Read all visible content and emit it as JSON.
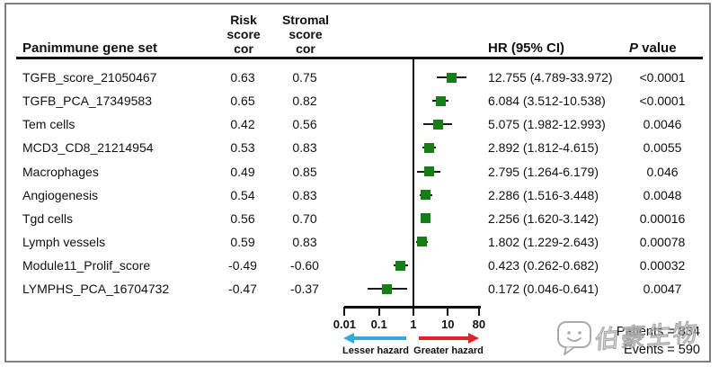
{
  "figure": {
    "header": {
      "gene_set_col": "Panimmune gene set",
      "risk_col_lines": [
        "Risk",
        "score",
        "cor"
      ],
      "stromal_col_lines": [
        "Stromal",
        "score",
        "cor"
      ],
      "hr_col": "HR (95% CI)",
      "p_col_italic": "P",
      "p_col_rest": " value"
    },
    "footer": {
      "patients": "Patients = 834",
      "events": "Events = 590"
    },
    "hazard_labels": {
      "lesser": "Lesser hazard",
      "greater": "Greater hazard"
    },
    "watermark": {
      "text": "伯豪生物",
      "icon": "chat-bubble-smiley-logo"
    }
  },
  "table": {
    "rows": [
      {
        "name": "TGFB_score_21050467",
        "risk": "0.63",
        "stromal": "0.75",
        "hr_text": "12.755 (4.789-33.972)",
        "p": "<0.0001"
      },
      {
        "name": "TGFB_PCA_17349583",
        "risk": "0.65",
        "stromal": "0.82",
        "hr_text": "6.084 (3.512-10.538)",
        "p": "<0.0001"
      },
      {
        "name": "Tem cells",
        "risk": "0.42",
        "stromal": "0.56",
        "hr_text": "5.075 (1.982-12.993)",
        "p": "0.0046"
      },
      {
        "name": "MCD3_CD8_21214954",
        "risk": "0.53",
        "stromal": "0.83",
        "hr_text": "2.892 (1.812-4.615)",
        "p": "0.0055"
      },
      {
        "name": "Macrophages",
        "risk": "0.49",
        "stromal": "0.85",
        "hr_text": "2.795 (1.264-6.179)",
        "p": "0.046"
      },
      {
        "name": "Angiogenesis",
        "risk": "0.54",
        "stromal": "0.83",
        "hr_text": "2.286 (1.516-3.448)",
        "p": "0.0048"
      },
      {
        "name": "Tgd cells",
        "risk": "0.56",
        "stromal": "0.70",
        "hr_text": "2.256 (1.620-3.142)",
        "p": "0.00016"
      },
      {
        "name": "Lymph vessels",
        "risk": "0.59",
        "stromal": "0.83",
        "hr_text": "1.802 (1.229-2.643)",
        "p": "0.00078"
      },
      {
        "name": "Module11_Prolif_score",
        "risk": "-0.49",
        "stromal": "-0.60",
        "hr_text": "0.423 (0.262-0.682)",
        "p": "0.00032"
      },
      {
        "name": "LYMPHS_PCA_16704732",
        "risk": "-0.47",
        "stromal": "-0.37",
        "hr_text": "0.172 (0.046-0.641)",
        "p": "0.0047"
      }
    ]
  },
  "chart_data": {
    "type": "forest",
    "x_scale": "log",
    "x_ticks": [
      "0.01",
      "0.1",
      "1",
      "10",
      "80"
    ],
    "x_tick_values": [
      0.01,
      0.1,
      1,
      10,
      80
    ],
    "x_range": [
      0.01,
      80
    ],
    "reference_line": 1,
    "series": [
      {
        "name": "TGFB_score_21050467",
        "hr": 12.755,
        "ci_low": 4.789,
        "ci_high": 33.972,
        "p": "<0.0001"
      },
      {
        "name": "TGFB_PCA_17349583",
        "hr": 6.084,
        "ci_low": 3.512,
        "ci_high": 10.538,
        "p": "<0.0001"
      },
      {
        "name": "Tem cells",
        "hr": 5.075,
        "ci_low": 1.982,
        "ci_high": 12.993,
        "p": "0.0046"
      },
      {
        "name": "MCD3_CD8_21214954",
        "hr": 2.892,
        "ci_low": 1.812,
        "ci_high": 4.615,
        "p": "0.0055"
      },
      {
        "name": "Macrophages",
        "hr": 2.795,
        "ci_low": 1.264,
        "ci_high": 6.179,
        "p": "0.046"
      },
      {
        "name": "Angiogenesis",
        "hr": 2.286,
        "ci_low": 1.516,
        "ci_high": 3.448,
        "p": "0.0048"
      },
      {
        "name": "Tgd cells",
        "hr": 2.256,
        "ci_low": 1.62,
        "ci_high": 3.142,
        "p": "0.00016"
      },
      {
        "name": "Lymph vessels",
        "hr": 1.802,
        "ci_low": 1.229,
        "ci_high": 2.643,
        "p": "0.00078"
      },
      {
        "name": "Module11_Prolif_score",
        "hr": 0.423,
        "ci_low": 0.262,
        "ci_high": 0.682,
        "p": "0.00032"
      },
      {
        "name": "LYMPHS_PCA_16704732",
        "hr": 0.172,
        "ci_low": 0.046,
        "ci_high": 0.641,
        "p": "0.0047"
      }
    ]
  },
  "colors": {
    "marker_green": "#157e15",
    "ci_line": "#1a1a1a",
    "lesser_arrow_blue": "#35a8dc",
    "greater_arrow_red": "#e2242b",
    "frame_gray": "#7f7f7f",
    "watermark_gray": "#a6a6a6"
  }
}
